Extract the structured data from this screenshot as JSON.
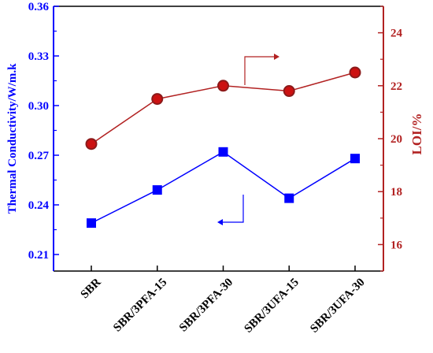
{
  "chart_data": {
    "type": "line",
    "title": "",
    "categories": [
      "SBR",
      "SBR/3PFA-15",
      "SBR/3PFA-30",
      "SBR/3UFA-15",
      "SBR/3UFA-30"
    ],
    "series": [
      {
        "name": "",
        "axis": "left",
        "marker": "square",
        "color": "#0000ff",
        "values": [
          0.229,
          0.249,
          0.272,
          0.244,
          0.268
        ]
      },
      {
        "name": "",
        "axis": "right",
        "marker": "circle",
        "color": "#b22222",
        "values": [
          19.8,
          21.5,
          22.0,
          21.8,
          22.5
        ]
      }
    ],
    "ylabel": "Thermal Conductivity/W/m.k",
    "ylim": [
      0.2,
      0.36
    ],
    "yticks": [
      "0.21",
      "0.24",
      "0.27",
      "0.30",
      "0.33",
      "0.36"
    ],
    "y2label": "LOI/%",
    "y2lim": [
      15,
      25
    ],
    "y2ticks": [
      "16",
      "18",
      "20",
      "22",
      "24"
    ],
    "xlabel": "",
    "grid": false,
    "annotations": [
      {
        "type": "arrow",
        "points_to": "right axis",
        "color": "#b22222"
      },
      {
        "type": "arrow",
        "points_to": "left axis",
        "color": "#0000ff"
      }
    ],
    "left_axis_color": "#0000ff",
    "right_axis_color": "#b22222",
    "marker_fill_right": "#cc1111",
    "marker_edge_right": "#8b1a1a"
  }
}
